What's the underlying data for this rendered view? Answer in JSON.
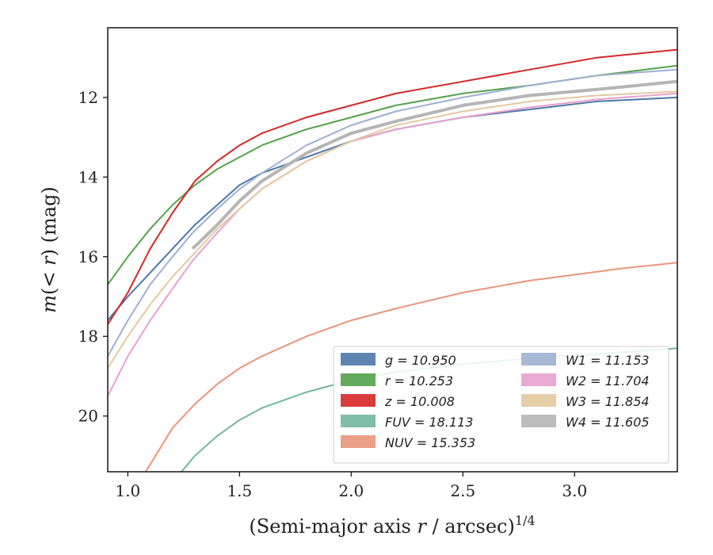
{
  "chart_data": {
    "type": "line",
    "xlabel": "(Semi-major axis r / arcsec)^{1/4}",
    "ylabel": "m(< r) (mag)",
    "xlim": [
      0.91,
      3.46
    ],
    "ylim": [
      21.4,
      10.25
    ],
    "y_inverted": true,
    "xticks": [
      "1.0",
      "1.5",
      "2.0",
      "2.5",
      "3.0"
    ],
    "yticks": [
      "12",
      "14",
      "16",
      "18",
      "20"
    ],
    "grid": false,
    "legend_position": "lower-right",
    "series": [
      {
        "name": "g = 10.950",
        "color": "#4c78a8",
        "x": [
          0.91,
          1.0,
          1.1,
          1.2,
          1.3,
          1.4,
          1.5,
          1.6,
          1.8,
          2.0,
          2.2,
          2.5,
          2.8,
          3.1,
          3.46
        ],
        "y": [
          17.6,
          17.0,
          16.4,
          15.8,
          15.2,
          14.7,
          14.2,
          13.9,
          13.5,
          13.1,
          12.8,
          12.5,
          12.3,
          12.1,
          12.0
        ]
      },
      {
        "name": "r = 10.253",
        "color": "#54a24b",
        "x": [
          0.91,
          1.0,
          1.1,
          1.2,
          1.3,
          1.4,
          1.5,
          1.6,
          1.8,
          2.0,
          2.2,
          2.5,
          2.8,
          3.1,
          3.46
        ],
        "y": [
          16.7,
          16.0,
          15.3,
          14.7,
          14.2,
          13.8,
          13.5,
          13.2,
          12.8,
          12.5,
          12.2,
          11.9,
          11.7,
          11.45,
          11.2
        ]
      },
      {
        "name": "z = 10.008",
        "color": "#d62728",
        "x": [
          0.91,
          1.0,
          1.1,
          1.2,
          1.3,
          1.4,
          1.5,
          1.6,
          1.8,
          2.0,
          2.2,
          2.5,
          2.8,
          3.1,
          3.46
        ],
        "y": [
          17.7,
          16.9,
          15.8,
          14.9,
          14.1,
          13.6,
          13.2,
          12.9,
          12.5,
          12.2,
          11.9,
          11.6,
          11.3,
          11.0,
          10.8
        ]
      },
      {
        "name": "FUV = 18.113",
        "color": "#72b7a1",
        "x": [
          1.24,
          1.3,
          1.4,
          1.5,
          1.6,
          1.8,
          2.0,
          2.2,
          2.5,
          2.8,
          3.1,
          3.46
        ],
        "y": [
          21.4,
          21.0,
          20.5,
          20.1,
          19.8,
          19.4,
          19.1,
          18.9,
          18.7,
          18.55,
          18.45,
          18.3
        ]
      },
      {
        "name": "NUV = 15.353",
        "color": "#e8967a",
        "x": [
          1.08,
          1.2,
          1.3,
          1.4,
          1.5,
          1.6,
          1.8,
          2.0,
          2.2,
          2.5,
          2.8,
          3.07,
          3.2,
          3.46
        ],
        "y": [
          21.4,
          20.3,
          19.7,
          19.2,
          18.8,
          18.5,
          18.0,
          17.6,
          17.3,
          16.9,
          16.6,
          16.4,
          16.3,
          16.15
        ]
      },
      {
        "name": "W1 = 11.153",
        "color": "#9fb0d0",
        "x": [
          0.91,
          1.0,
          1.1,
          1.2,
          1.29,
          1.4,
          1.5,
          1.6,
          1.8,
          2.0,
          2.2,
          2.5,
          2.8,
          3.1,
          3.46
        ],
        "y": [
          18.5,
          17.6,
          16.7,
          16.0,
          15.4,
          14.8,
          14.3,
          13.9,
          13.2,
          12.7,
          12.35,
          12.0,
          11.7,
          11.45,
          11.3
        ]
      },
      {
        "name": "W2 = 11.704",
        "color": "#e7a1cf",
        "x": [
          0.91,
          1.0,
          1.1,
          1.2,
          1.29,
          1.4,
          1.5,
          1.6,
          1.8,
          2.0,
          2.2,
          2.5,
          2.8,
          3.1,
          3.46
        ],
        "y": [
          19.5,
          18.5,
          17.6,
          16.8,
          16.1,
          15.4,
          14.8,
          14.3,
          13.6,
          13.1,
          12.8,
          12.5,
          12.25,
          12.05,
          11.9
        ]
      },
      {
        "name": "W3 = 11.854",
        "color": "#e3c9a0",
        "x": [
          0.91,
          1.0,
          1.1,
          1.2,
          1.3,
          1.4,
          1.5,
          1.6,
          1.8,
          2.0,
          2.2,
          2.5,
          2.8,
          3.1,
          3.46
        ],
        "y": [
          18.8,
          18.0,
          17.2,
          16.5,
          15.9,
          15.3,
          14.8,
          14.3,
          13.6,
          13.1,
          12.7,
          12.35,
          12.1,
          11.95,
          11.85
        ]
      },
      {
        "name": "W4 = 11.605",
        "color": "#b5b5b5",
        "x": [
          1.29,
          1.4,
          1.5,
          1.6,
          1.8,
          2.0,
          2.2,
          2.5,
          2.8,
          3.1,
          3.46
        ],
        "y": [
          15.8,
          15.2,
          14.6,
          14.1,
          13.4,
          12.9,
          12.6,
          12.2,
          11.95,
          11.8,
          11.6
        ]
      }
    ]
  }
}
